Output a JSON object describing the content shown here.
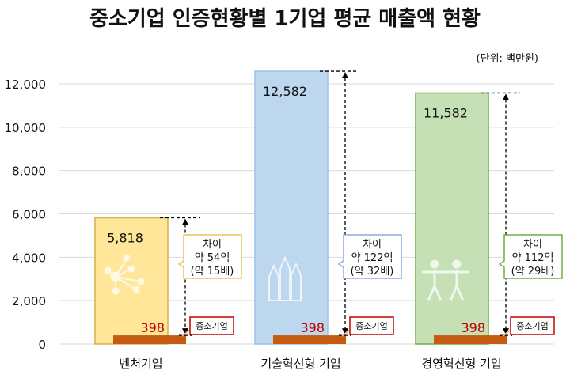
{
  "chart_data": {
    "type": "bar",
    "title": "중소기업 인증현황별 1기업 평균 매출액 현황",
    "unit_label": "(단위: 백만원)",
    "categories": [
      "벤처기업",
      "기술혁신형 기업",
      "경영혁신형 기업"
    ],
    "values": [
      5818,
      12582,
      11582
    ],
    "value_labels": [
      "5,818",
      "12,582",
      "11,582"
    ],
    "baseline": {
      "name": "중소기업",
      "value": 398,
      "value_label": "398"
    },
    "callouts": [
      {
        "lines": [
          "차이",
          "약 54억",
          "(약 15배)"
        ]
      },
      {
        "lines": [
          "차이",
          "약 122억",
          "(약 32배)"
        ]
      },
      {
        "lines": [
          "차이",
          "약 112억",
          "(약 29배)"
        ]
      }
    ],
    "icons": [
      "molecule-icon",
      "pencils-icon",
      "people-icon"
    ],
    "ylim": [
      0,
      12000
    ],
    "yticks": [
      0,
      2000,
      4000,
      6000,
      8000,
      10000,
      12000
    ],
    "ytick_labels": [
      "0",
      "2,000",
      "4,000",
      "6,000",
      "8,000",
      "10,000",
      "12,000"
    ],
    "grid": true,
    "colors": {
      "fills": [
        "#ffe699",
        "#bdd7ee",
        "#c5e0b4"
      ],
      "borders": [
        "#d4b24c",
        "#9dc3e6",
        "#70ad47"
      ],
      "callout_borders": [
        "#e6c65a",
        "#8faadc",
        "#70ad47"
      ],
      "baseline": "#c55a11",
      "baseline_label": "#c00000"
    }
  }
}
